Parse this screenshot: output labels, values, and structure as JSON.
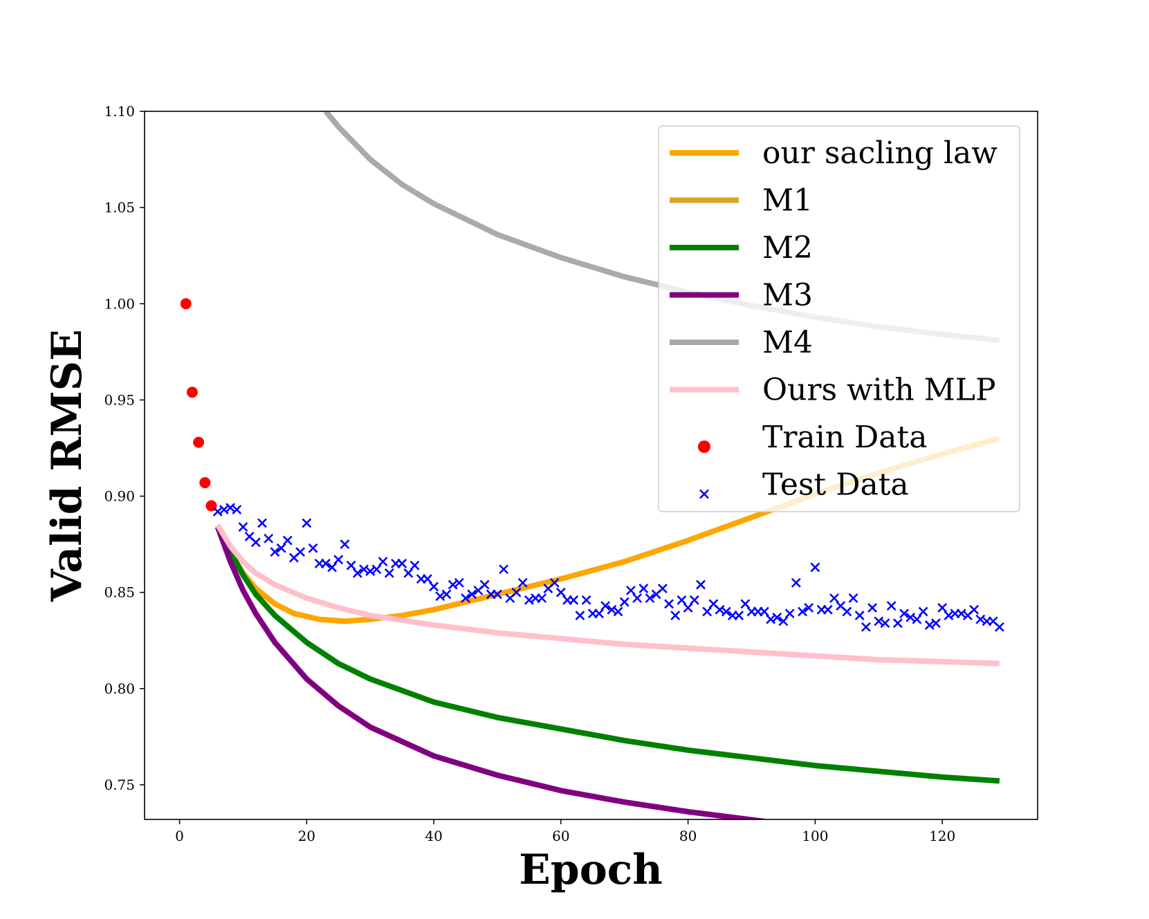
{
  "chart_data": {
    "type": "line",
    "title": "",
    "xlabel": "Epoch",
    "ylabel": "Valid RMSE",
    "xlim": [
      -5.5,
      135
    ],
    "ylim": [
      0.732,
      1.1
    ],
    "xticks": [
      0,
      20,
      40,
      60,
      80,
      100,
      120
    ],
    "xtick_labels": [
      "0",
      "20",
      "40",
      "60",
      "80",
      "100",
      "120"
    ],
    "yticks": [
      0.75,
      0.8,
      0.85,
      0.9,
      0.95,
      1.0,
      1.05,
      1.1
    ],
    "ytick_labels": [
      "0.75",
      "0.80",
      "0.85",
      "0.90",
      "0.95",
      "1.00",
      "1.05",
      "1.10"
    ],
    "legend_position": "top-right",
    "series": [
      {
        "name": "our sacling law",
        "kind": "line",
        "color": "#FFA500",
        "x": [
          6,
          8,
          10,
          12,
          15,
          18,
          22,
          26,
          30,
          35,
          40,
          45,
          50,
          55,
          60,
          70,
          80,
          90,
          100,
          110,
          120,
          129
        ],
        "y": [
          0.885,
          0.871,
          0.86,
          0.852,
          0.844,
          0.839,
          0.836,
          0.835,
          0.836,
          0.838,
          0.841,
          0.845,
          0.849,
          0.853,
          0.857,
          0.866,
          0.877,
          0.889,
          0.901,
          0.912,
          0.922,
          0.93
        ]
      },
      {
        "name": "M1",
        "kind": "line",
        "color": "#DAA520",
        "x": [],
        "y": []
      },
      {
        "name": "M2",
        "kind": "line",
        "color": "#008000",
        "x": [
          6,
          8,
          10,
          12,
          15,
          20,
          25,
          30,
          40,
          50,
          60,
          70,
          80,
          90,
          100,
          110,
          120,
          129
        ],
        "y": [
          0.884,
          0.871,
          0.859,
          0.849,
          0.838,
          0.824,
          0.813,
          0.805,
          0.793,
          0.785,
          0.779,
          0.773,
          0.768,
          0.764,
          0.76,
          0.757,
          0.754,
          0.752
        ]
      },
      {
        "name": "M3",
        "kind": "line",
        "color": "#800080",
        "x": [
          6,
          8,
          10,
          12,
          15,
          20,
          25,
          30,
          40,
          50,
          60,
          70,
          80,
          92
        ],
        "y": [
          0.884,
          0.866,
          0.851,
          0.839,
          0.824,
          0.805,
          0.791,
          0.78,
          0.765,
          0.755,
          0.747,
          0.741,
          0.736,
          0.731
        ]
      },
      {
        "name": "M4",
        "kind": "line",
        "color": "#AAAAAA",
        "x": [
          23,
          25,
          30,
          35,
          40,
          50,
          60,
          70,
          80,
          90,
          100,
          110,
          120,
          129
        ],
        "y": [
          1.1,
          1.092,
          1.075,
          1.062,
          1.052,
          1.036,
          1.024,
          1.014,
          1.006,
          0.999,
          0.993,
          0.988,
          0.984,
          0.981
        ]
      },
      {
        "name": "Ours with MLP",
        "kind": "line",
        "color": "#FFC0CB",
        "x": [
          6,
          8,
          10,
          12,
          15,
          20,
          25,
          30,
          40,
          50,
          60,
          70,
          80,
          90,
          100,
          110,
          120,
          129
        ],
        "y": [
          0.885,
          0.874,
          0.866,
          0.86,
          0.854,
          0.847,
          0.842,
          0.838,
          0.833,
          0.829,
          0.826,
          0.823,
          0.821,
          0.819,
          0.817,
          0.815,
          0.814,
          0.813
        ]
      },
      {
        "name": "Train Data",
        "kind": "scatter",
        "marker": "circle",
        "color": "#FF0000",
        "x": [
          1,
          2,
          3,
          4,
          5
        ],
        "y": [
          1.0,
          0.954,
          0.928,
          0.907,
          0.895
        ]
      },
      {
        "name": "Test Data",
        "kind": "scatter",
        "marker": "x",
        "color": "#0000FF",
        "x": [
          6,
          7,
          8,
          9,
          10,
          11,
          12,
          13,
          14,
          15,
          16,
          17,
          18,
          19,
          20,
          21,
          22,
          23,
          24,
          25,
          26,
          27,
          28,
          29,
          30,
          31,
          32,
          33,
          34,
          35,
          36,
          37,
          38,
          39,
          40,
          41,
          42,
          43,
          44,
          45,
          46,
          47,
          48,
          49,
          50,
          51,
          52,
          53,
          54,
          55,
          56,
          57,
          58,
          59,
          60,
          61,
          62,
          63,
          64,
          65,
          66,
          67,
          68,
          69,
          70,
          71,
          72,
          73,
          74,
          75,
          76,
          77,
          78,
          79,
          80,
          81,
          82,
          83,
          84,
          85,
          86,
          87,
          88,
          89,
          90,
          91,
          92,
          93,
          94,
          95,
          96,
          97,
          98,
          99,
          100,
          101,
          102,
          103,
          104,
          105,
          106,
          107,
          108,
          109,
          110,
          111,
          112,
          113,
          114,
          115,
          116,
          117,
          118,
          119,
          120,
          121,
          122,
          123,
          124,
          125,
          126,
          127,
          128,
          129
        ],
        "y": [
          0.892,
          0.893,
          0.894,
          0.893,
          0.884,
          0.879,
          0.876,
          0.886,
          0.878,
          0.871,
          0.873,
          0.877,
          0.868,
          0.871,
          0.886,
          0.873,
          0.865,
          0.865,
          0.863,
          0.867,
          0.875,
          0.864,
          0.86,
          0.862,
          0.861,
          0.862,
          0.866,
          0.86,
          0.865,
          0.865,
          0.86,
          0.864,
          0.857,
          0.857,
          0.853,
          0.848,
          0.849,
          0.854,
          0.855,
          0.847,
          0.849,
          0.851,
          0.854,
          0.849,
          0.849,
          0.862,
          0.847,
          0.85,
          0.855,
          0.846,
          0.847,
          0.847,
          0.852,
          0.855,
          0.85,
          0.846,
          0.846,
          0.838,
          0.846,
          0.839,
          0.839,
          0.843,
          0.841,
          0.84,
          0.845,
          0.851,
          0.847,
          0.852,
          0.847,
          0.849,
          0.852,
          0.844,
          0.838,
          0.846,
          0.842,
          0.846,
          0.854,
          0.84,
          0.844,
          0.841,
          0.84,
          0.838,
          0.838,
          0.844,
          0.84,
          0.84,
          0.84,
          0.836,
          0.837,
          0.835,
          0.839,
          0.855,
          0.84,
          0.842,
          0.863,
          0.841,
          0.841,
          0.847,
          0.843,
          0.84,
          0.847,
          0.838,
          0.832,
          0.842,
          0.835,
          0.834,
          0.843,
          0.834,
          0.839,
          0.837,
          0.836,
          0.84,
          0.833,
          0.834,
          0.842,
          0.838,
          0.839,
          0.839,
          0.838,
          0.841,
          0.836,
          0.835,
          0.835,
          0.832
        ]
      }
    ]
  }
}
